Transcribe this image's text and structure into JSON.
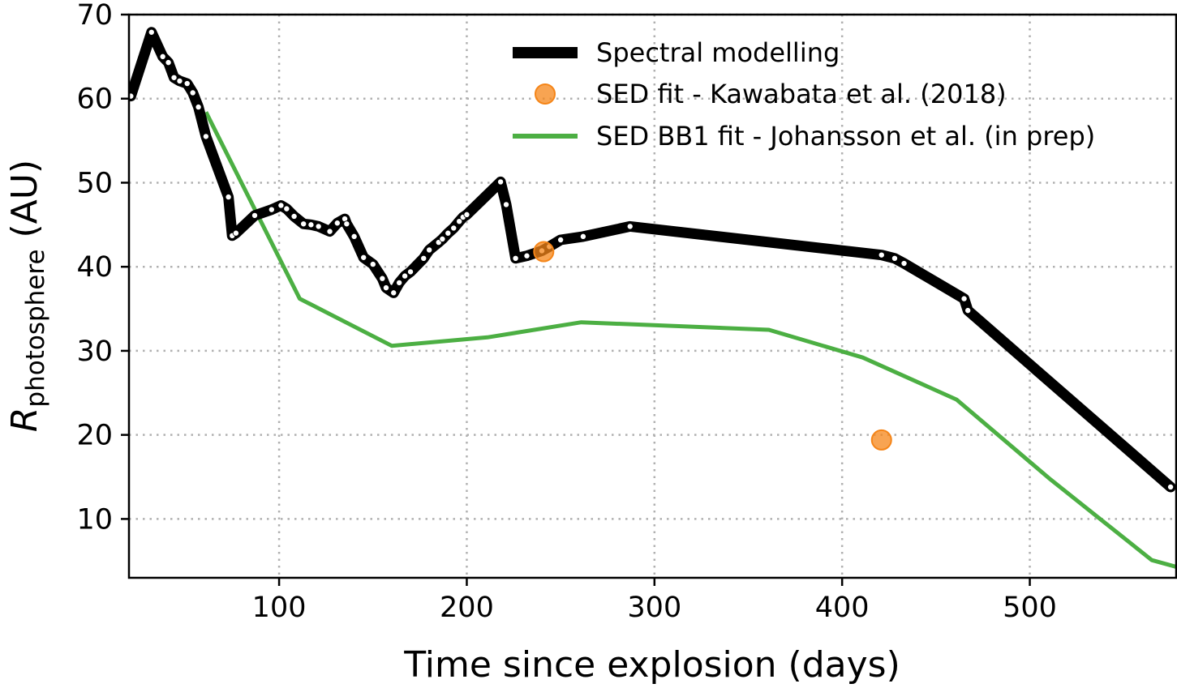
{
  "chart_data": {
    "type": "line",
    "xlabel": "Time since explosion (days)",
    "ylabel": {
      "base": "R",
      "subscript": "photosphere",
      "unit": " (AU)"
    },
    "xlim": [
      20,
      578
    ],
    "ylim": [
      3,
      70
    ],
    "xticks": [
      100,
      200,
      300,
      400,
      500
    ],
    "yticks": [
      10,
      20,
      30,
      40,
      50,
      60,
      70
    ],
    "grid": true,
    "legend_position": "top-right",
    "series": [
      {
        "name": "Spectral modelling",
        "style": "thick-line-with-points",
        "color": "#000000",
        "x": [
          21,
          32,
          38,
          41,
          44,
          47,
          51,
          54,
          57,
          61,
          73,
          75,
          77,
          87,
          96,
          101,
          104,
          108,
          113,
          117,
          121,
          127,
          131,
          135,
          136,
          140,
          145,
          150,
          155,
          157,
          161,
          164,
          167,
          170,
          177,
          180,
          185,
          187,
          190,
          193,
          196,
          198,
          200,
          218,
          221,
          226,
          232,
          240,
          244,
          250,
          262,
          287,
          421,
          428,
          433,
          465,
          467,
          575
        ],
        "y": [
          60.3,
          67.9,
          65.0,
          64.3,
          62.5,
          62.1,
          61.8,
          60.7,
          59.0,
          55.5,
          48.3,
          43.7,
          44.0,
          46.1,
          46.8,
          47.3,
          46.9,
          46.0,
          45.1,
          45.0,
          44.8,
          44.2,
          45.2,
          45.7,
          45.1,
          43.6,
          41.1,
          40.3,
          38.6,
          37.5,
          36.9,
          38.1,
          38.9,
          39.4,
          41.0,
          42.0,
          42.9,
          43.3,
          44.0,
          44.6,
          45.4,
          45.9,
          46.2,
          50.1,
          47.4,
          41.0,
          41.3,
          41.9,
          42.4,
          43.2,
          43.6,
          44.8,
          41.4,
          41.0,
          40.4,
          36.2,
          34.8,
          13.8
        ]
      },
      {
        "name": "SED fit - Kawabata et al. (2018)",
        "style": "markers",
        "color": "#f58518",
        "x": [
          241,
          421
        ],
        "y": [
          41.8,
          19.4
        ]
      },
      {
        "name": "SED BB1 fit - Johansson et al. (in prep)",
        "style": "line",
        "color": "#4caf43",
        "x": [
          61,
          111,
          160,
          211,
          261,
          361,
          411,
          461,
          511,
          565,
          578
        ],
        "y": [
          58.4,
          36.2,
          30.6,
          31.6,
          33.4,
          32.5,
          29.2,
          24.2,
          14.7,
          5.1,
          4.3
        ]
      }
    ]
  }
}
